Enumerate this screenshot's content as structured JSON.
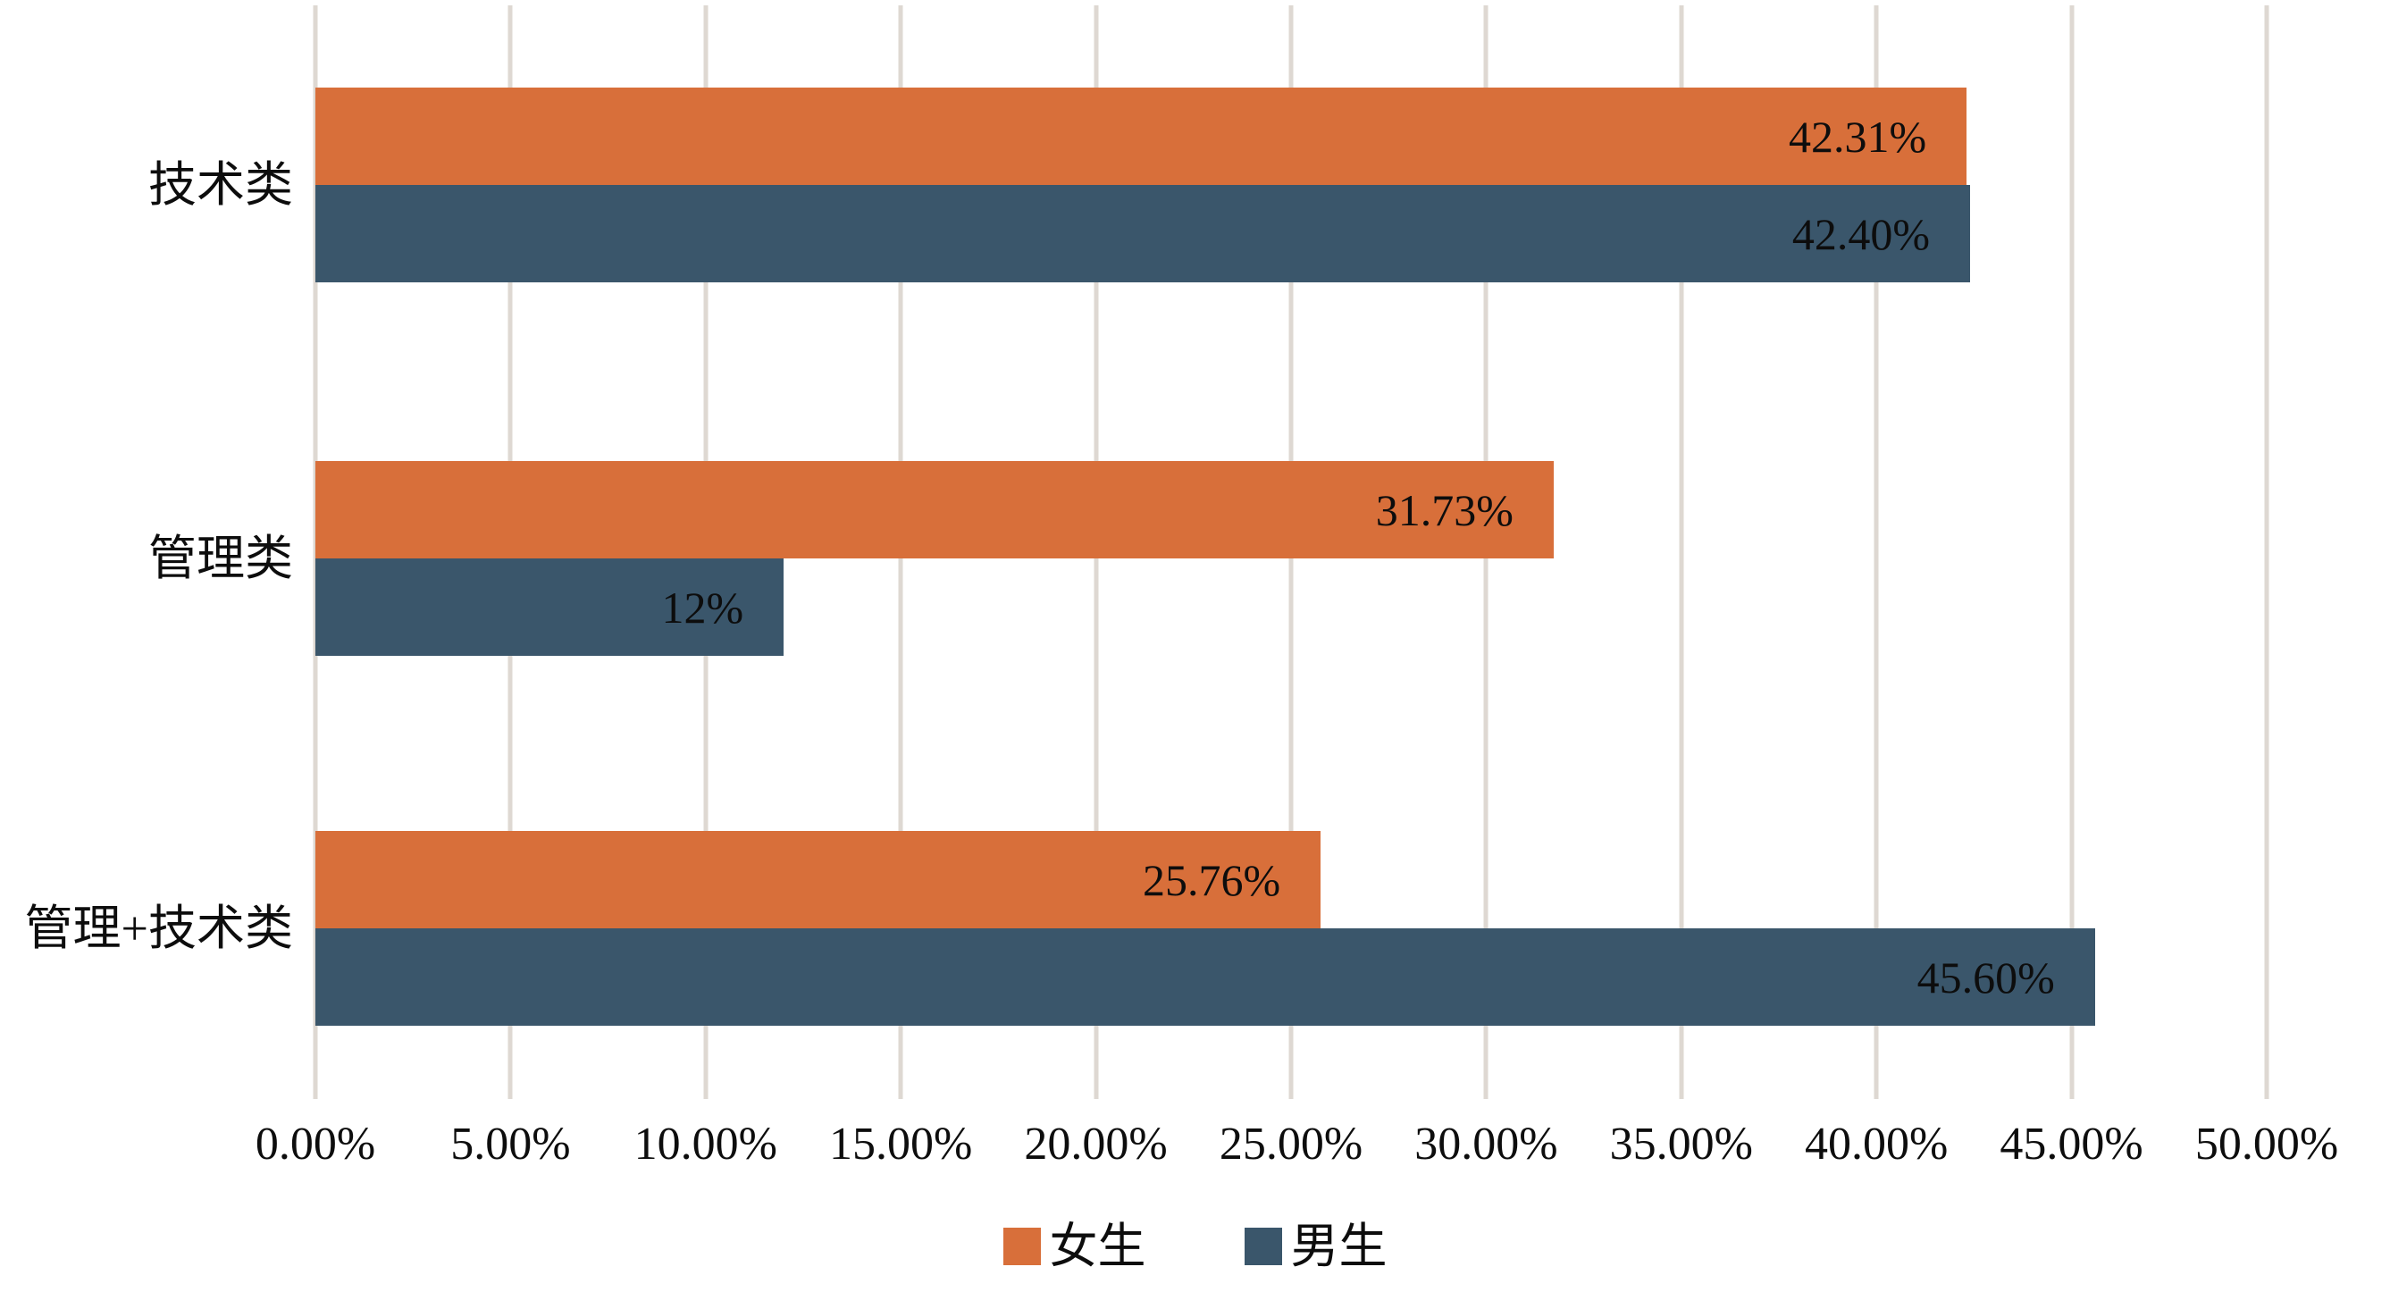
{
  "chart_data": {
    "type": "bar",
    "orientation": "horizontal",
    "title": "",
    "xlabel": "",
    "ylabel": "",
    "xlim": [
      0,
      50
    ],
    "grid": "vertical",
    "gridline_color": "#DED8D2",
    "background_color": "#FFFFFF",
    "text_color": "#0D0D0D",
    "categories": [
      "技术类",
      "管理类",
      "管理+技术类"
    ],
    "series": [
      {
        "name": "女生",
        "color": "#D86F3A",
        "values": [
          42.31,
          31.73,
          25.76
        ],
        "labels": [
          "42.31%",
          "31.73%",
          "25.76%"
        ]
      },
      {
        "name": "男生",
        "color": "#3A566B",
        "values": [
          42.4,
          12,
          45.6
        ],
        "labels": [
          "42.40%",
          "12%",
          "45.60%"
        ]
      }
    ],
    "x_ticks": [
      "0.00%",
      "5.00%",
      "10.00%",
      "15.00%",
      "20.00%",
      "25.00%",
      "30.00%",
      "35.00%",
      "40.00%",
      "45.00%",
      "50.00%"
    ],
    "legend_position": "bottom"
  }
}
